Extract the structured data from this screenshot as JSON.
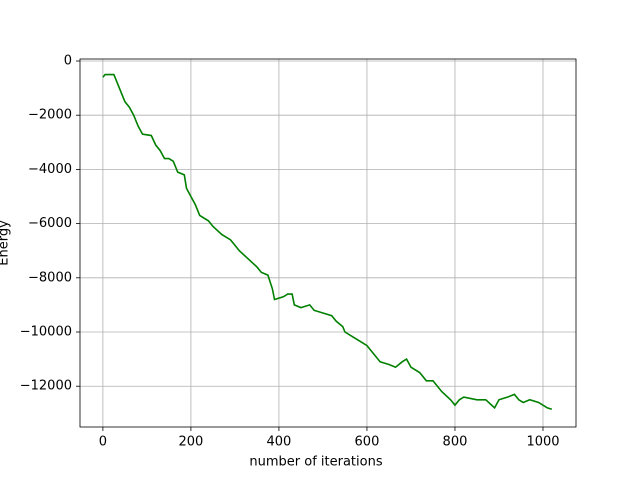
{
  "chart_data": {
    "type": "line",
    "xlabel": "number of iterations",
    "ylabel": "Energy",
    "x": [
      0,
      5,
      25,
      30,
      40,
      50,
      60,
      70,
      80,
      90,
      110,
      120,
      130,
      140,
      150,
      160,
      170,
      185,
      190,
      200,
      210,
      220,
      240,
      250,
      270,
      290,
      300,
      310,
      330,
      350,
      360,
      375,
      385,
      390,
      410,
      420,
      430,
      435,
      450,
      470,
      480,
      500,
      520,
      530,
      545,
      550,
      570,
      590,
      600,
      615,
      630,
      650,
      665,
      680,
      690,
      700,
      720,
      735,
      750,
      770,
      790,
      800,
      810,
      820,
      850,
      870,
      890,
      900,
      920,
      935,
      945,
      955,
      970,
      990,
      1000,
      1010,
      1020
    ],
    "series": [
      {
        "color": "#008000",
        "values": [
          -600,
          -500,
          -500,
          -700,
          -1100,
          -1500,
          -1700,
          -2000,
          -2400,
          -2700,
          -2750,
          -3100,
          -3300,
          -3600,
          -3600,
          -3700,
          -4100,
          -4200,
          -4700,
          -5000,
          -5300,
          -5700,
          -5900,
          -6100,
          -6400,
          -6600,
          -6800,
          -7000,
          -7300,
          -7600,
          -7800,
          -7900,
          -8400,
          -8800,
          -8700,
          -8600,
          -8600,
          -9000,
          -9100,
          -9000,
          -9200,
          -9300,
          -9400,
          -9600,
          -9800,
          -10000,
          -10200,
          -10400,
          -10500,
          -10800,
          -11100,
          -11200,
          -11300,
          -11100,
          -11000,
          -11300,
          -11500,
          -11800,
          -11800,
          -12200,
          -12500,
          -12700,
          -12500,
          -12400,
          -12500,
          -12500,
          -12800,
          -12500,
          -12400,
          -12300,
          -12500,
          -12600,
          -12500,
          -12600,
          -12700,
          -12800,
          -12850
        ]
      }
    ],
    "xlim": [
      -52,
      1075
    ],
    "ylim": [
      -13505,
      74
    ],
    "xticks": [
      0,
      200,
      400,
      600,
      800,
      1000
    ],
    "yticks": [
      {
        "value": -12000,
        "label": "−12000"
      },
      {
        "value": -10000,
        "label": "−10000"
      },
      {
        "value": -8000,
        "label": "−8000"
      },
      {
        "value": -6000,
        "label": "−6000"
      },
      {
        "value": -4000,
        "label": "−4000"
      },
      {
        "value": -2000,
        "label": "−2000"
      },
      0
    ],
    "grid": true
  }
}
